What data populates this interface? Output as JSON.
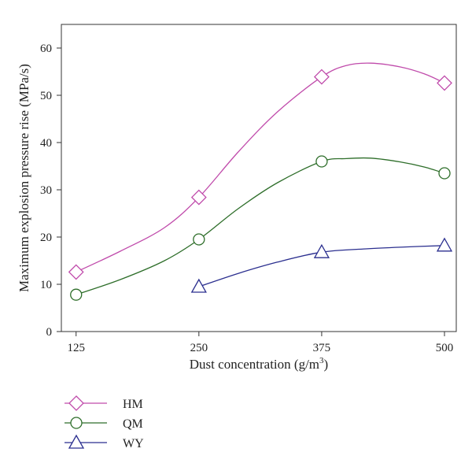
{
  "chart_data": {
    "type": "line",
    "title": "",
    "xlabel": "Dust concentration (g/m",
    "xlabel_sup": "3",
    "xlabel_end": ")",
    "ylabel": "Maximum explosion pressure rise (MPa/s)",
    "x_ticks": [
      "125",
      "250",
      "375",
      "500"
    ],
    "y_ticks": [
      "0",
      "10",
      "20",
      "30",
      "40",
      "50",
      "60"
    ],
    "xlim": [
      110,
      512
    ],
    "ylim": [
      0,
      65
    ],
    "grid": false,
    "legend_position": "below-left",
    "series": [
      {
        "name": "HM",
        "marker": "diamond",
        "color": "#c04bab",
        "x": [
          125,
          250,
          375,
          500
        ],
        "y": [
          12.6,
          28.4,
          53.9,
          52.6
        ],
        "curve": [
          [
            125,
            12.6
          ],
          [
            170,
            17
          ],
          [
            215,
            22
          ],
          [
            250,
            28.4
          ],
          [
            290,
            38
          ],
          [
            330,
            46.5
          ],
          [
            375,
            53.9
          ],
          [
            400,
            56.3
          ],
          [
            425,
            56.8
          ],
          [
            455,
            56
          ],
          [
            480,
            54.5
          ],
          [
            500,
            52.6
          ]
        ]
      },
      {
        "name": "QM",
        "marker": "circle",
        "color": "#2e6e2a",
        "x": [
          125,
          250,
          375,
          500
        ],
        "y": [
          7.8,
          19.5,
          36.0,
          33.5
        ],
        "curve": [
          [
            125,
            7.8
          ],
          [
            170,
            11
          ],
          [
            215,
            15
          ],
          [
            250,
            19.5
          ],
          [
            290,
            26
          ],
          [
            330,
            31.5
          ],
          [
            375,
            36.0
          ],
          [
            400,
            36.6
          ],
          [
            425,
            36.7
          ],
          [
            455,
            35.9
          ],
          [
            480,
            34.8
          ],
          [
            500,
            33.5
          ]
        ]
      },
      {
        "name": "WY",
        "marker": "triangle",
        "color": "#2b2f8f",
        "x": [
          250,
          375,
          500
        ],
        "y": [
          9.5,
          16.8,
          18.2
        ],
        "curve": [
          [
            250,
            9.5
          ],
          [
            290,
            12.3
          ],
          [
            330,
            14.7
          ],
          [
            375,
            16.8
          ],
          [
            420,
            17.5
          ],
          [
            460,
            17.9
          ],
          [
            500,
            18.2
          ]
        ]
      }
    ]
  }
}
